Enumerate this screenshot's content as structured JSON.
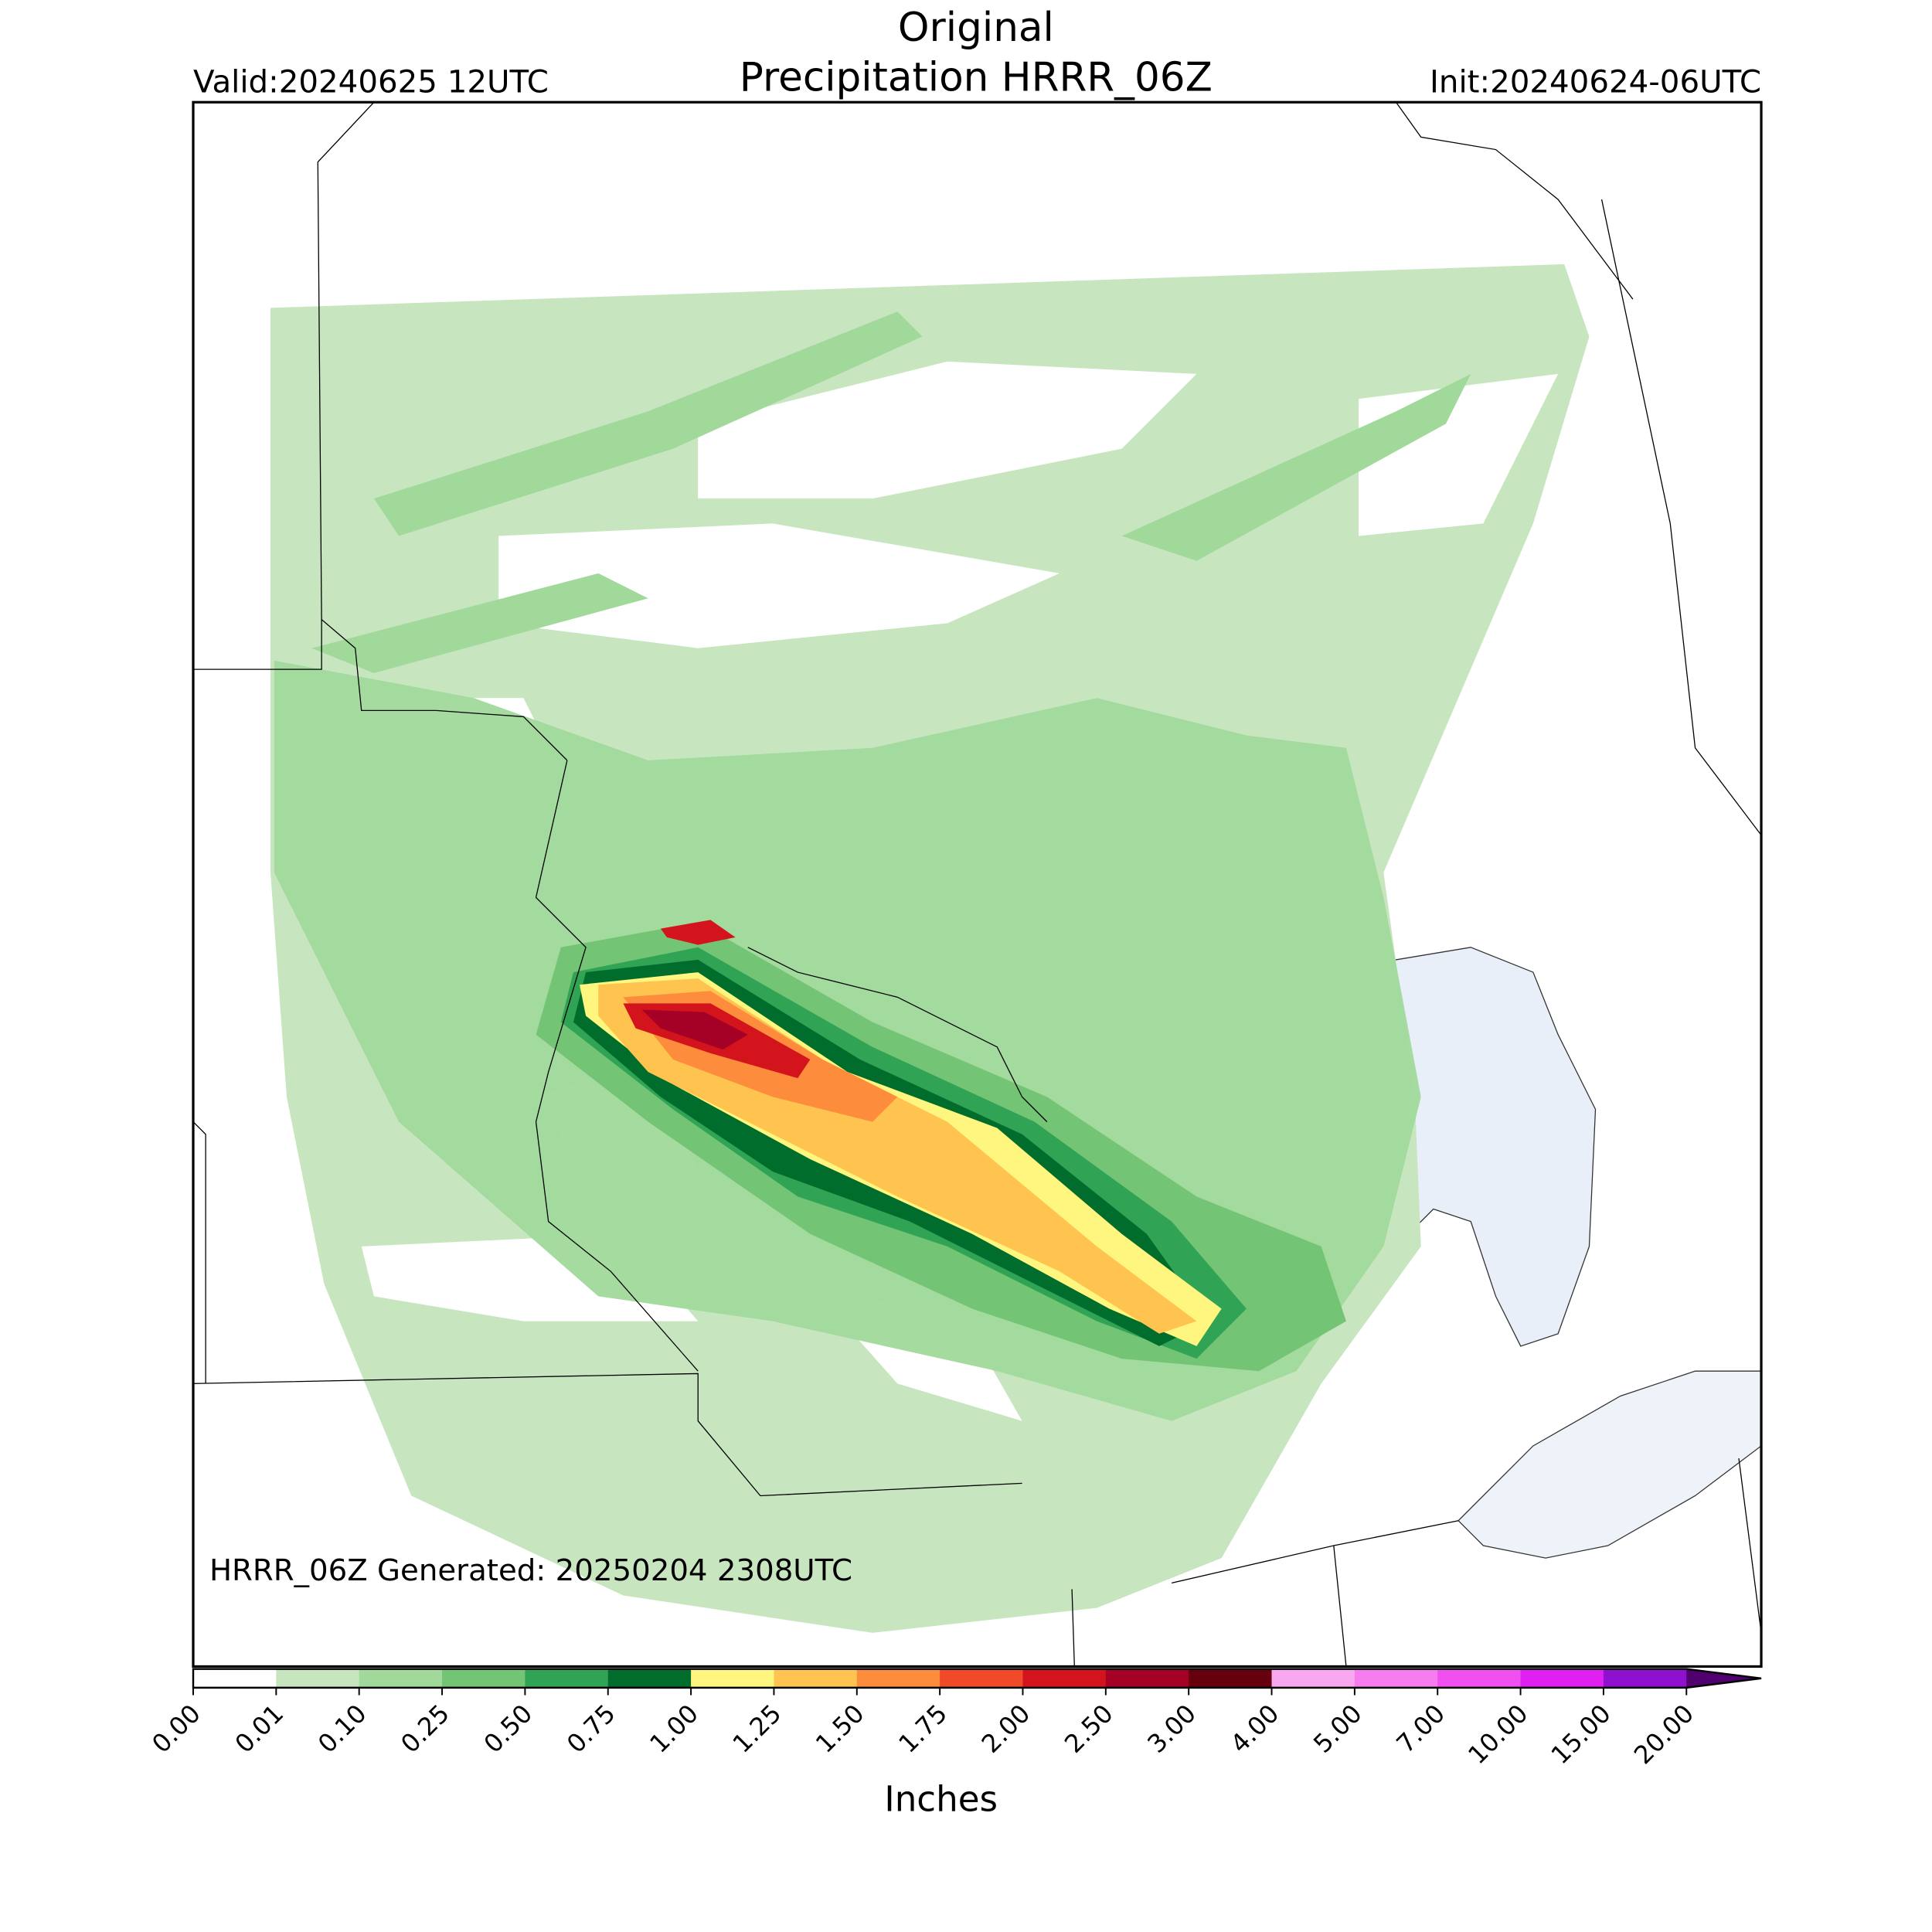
{
  "header": {
    "title": "Original",
    "subtitle": "Precipitation HRRR_06Z",
    "valid": "Valid:20240625 12UTC",
    "init": "Init:20240624-06UTC"
  },
  "footer": {
    "generated": "HRRR_06Z Generated: 20250204 2308UTC"
  },
  "colorbar": {
    "label": "Inches",
    "ticks": [
      {
        "value": 0,
        "label": "0.00"
      },
      {
        "value": 0.01,
        "label": "0.01"
      },
      {
        "value": 0.1,
        "label": "0.10"
      },
      {
        "value": 0.25,
        "label": "0.25"
      },
      {
        "value": 0.5,
        "label": "0.50"
      },
      {
        "value": 0.75,
        "label": "0.75"
      },
      {
        "value": 1,
        "label": "1.00"
      },
      {
        "value": 1.25,
        "label": "1.25"
      },
      {
        "value": 1.5,
        "label": "1.50"
      },
      {
        "value": 1.75,
        "label": "1.75"
      },
      {
        "value": 2,
        "label": "2.00"
      },
      {
        "value": 2.5,
        "label": "2.50"
      },
      {
        "value": 3,
        "label": "3.00"
      },
      {
        "value": 4,
        "label": "4.00"
      },
      {
        "value": 5,
        "label": "5.00"
      },
      {
        "value": 7,
        "label": "7.00"
      },
      {
        "value": 10,
        "label": "10.00"
      },
      {
        "value": 15,
        "label": "15.00"
      },
      {
        "value": 20,
        "label": "20.00"
      }
    ],
    "colors": [
      "#ffffff",
      "#c7e6c0",
      "#a1d99b",
      "#74c476",
      "#31a354",
      "#006d2c",
      "#fff67f",
      "#fec44f",
      "#fd8d3c",
      "#f04a28",
      "#d4141c",
      "#a50026",
      "#67000d",
      "#f9a8f0",
      "#f77cf0",
      "#f050f0",
      "#e020f0",
      "#9010d0"
    ],
    "extend_color": "#50006f"
  }
}
